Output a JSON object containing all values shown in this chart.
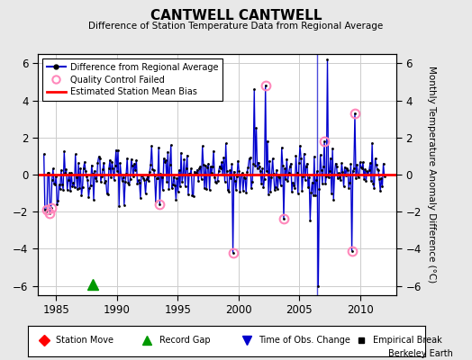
{
  "title": "CANTWELL CANTWELL",
  "subtitle": "Difference of Station Temperature Data from Regional Average",
  "ylabel": "Monthly Temperature Anomaly Difference (°C)",
  "credit": "Berkeley Earth",
  "xlim": [
    1983.5,
    2013.0
  ],
  "ylim": [
    -6.5,
    6.5
  ],
  "yticks": [
    -6,
    -4,
    -2,
    0,
    2,
    4,
    6
  ],
  "xticks": [
    1985,
    1990,
    1995,
    2000,
    2005,
    2010
  ],
  "mean_bias": 0.0,
  "record_gap_x": 1988.0,
  "record_gap_y": -5.9,
  "time_of_obs_change_x": 2006.5,
  "bg_color": "#e8e8e8",
  "plot_bg_color": "#ffffff",
  "line_color": "#0000cc",
  "fill_color": "#aaaaff",
  "qc_color": "#ff88bb",
  "bias_color": "#ff0000",
  "grid_color": "#cccccc",
  "seed": 42,
  "n_months": 336,
  "start_year": 1984.0,
  "end_year": 2012.0
}
